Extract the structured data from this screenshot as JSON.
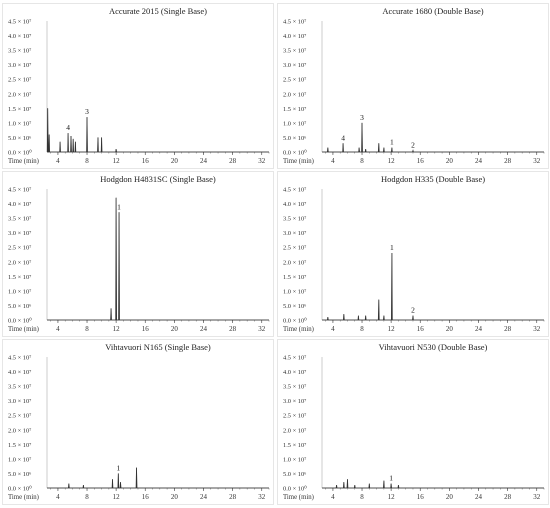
{
  "figure": {
    "y_tick_labels": [
      "4.5 × 10⁷",
      "4.0 × 10⁷",
      "3.5 × 10⁷",
      "3.0 × 10⁷",
      "2.5 × 10⁷",
      "2.0 × 10⁷",
      "1.5 × 10⁷",
      "1.0 × 10⁷",
      "5.0 × 10⁶",
      "0.0 × 10⁰"
    ],
    "x_axis_label": "Time (min)",
    "x_tick_labels": [
      "4",
      "8",
      "12",
      "16",
      "20",
      "24",
      "28",
      "32"
    ]
  },
  "chart_data": [
    {
      "type": "line",
      "title": "Accurate 2015 (Single Base)",
      "xlabel": "Time (min)",
      "xlim": [
        2.5,
        33
      ],
      "ylim": [
        0,
        45000000
      ],
      "peaks": [
        [
          2.6,
          15000000
        ],
        [
          2.8,
          6000000
        ],
        [
          4.3,
          3500000
        ],
        [
          5.4,
          6500000
        ],
        [
          5.8,
          5500000
        ],
        [
          6.1,
          4500000
        ],
        [
          6.4,
          3500000
        ],
        [
          8.0,
          12000000
        ],
        [
          9.5,
          5000000
        ],
        [
          10.0,
          5000000
        ],
        [
          12.0,
          1000000
        ]
      ],
      "annotations": [
        {
          "label": "4",
          "x": 5.4,
          "y": 6500000
        },
        {
          "label": "3",
          "x": 8.0,
          "y": 12000000
        }
      ]
    },
    {
      "type": "line",
      "title": "Accurate 1680 (Double Base)",
      "xlabel": "Time (min)",
      "xlim": [
        2.5,
        33
      ],
      "ylim": [
        0,
        45000000
      ],
      "peaks": [
        [
          3.3,
          1500000
        ],
        [
          5.4,
          3000000
        ],
        [
          7.6,
          1500000
        ],
        [
          8.0,
          10000000
        ],
        [
          8.5,
          1000000
        ],
        [
          10.3,
          3000000
        ],
        [
          11.0,
          1500000
        ],
        [
          12.1,
          1500000
        ],
        [
          15.0,
          500000
        ]
      ],
      "annotations": [
        {
          "label": "4",
          "x": 5.4,
          "y": 3000000
        },
        {
          "label": "3",
          "x": 8.0,
          "y": 10000000
        },
        {
          "label": "1",
          "x": 12.1,
          "y": 1500000
        },
        {
          "label": "2",
          "x": 15.0,
          "y": 500000
        }
      ]
    },
    {
      "type": "line",
      "title": "Hodgdon H4831SC (Single Base)",
      "xlabel": "Time (min)",
      "xlim": [
        2.5,
        33
      ],
      "ylim": [
        0,
        45000000
      ],
      "peaks": [
        [
          11.3,
          4000000
        ],
        [
          12.0,
          42000000
        ],
        [
          12.4,
          37000000
        ]
      ],
      "annotations": [
        {
          "label": "1",
          "x": 12.4,
          "y": 37000000
        }
      ]
    },
    {
      "type": "line",
      "title": "Hodgdon H335 (Double Base)",
      "xlabel": "Time (min)",
      "xlim": [
        2.5,
        33
      ],
      "ylim": [
        0,
        45000000
      ],
      "peaks": [
        [
          3.3,
          1000000
        ],
        [
          5.5,
          2000000
        ],
        [
          7.5,
          1500000
        ],
        [
          8.5,
          1500000
        ],
        [
          10.3,
          7000000
        ],
        [
          11.0,
          1500000
        ],
        [
          12.1,
          23000000
        ],
        [
          15.0,
          1500000
        ]
      ],
      "annotations": [
        {
          "label": "1",
          "x": 12.1,
          "y": 23000000
        },
        {
          "label": "2",
          "x": 15.0,
          "y": 1500000
        }
      ]
    },
    {
      "type": "line",
      "title": "Vihtavuori N165 (Single Base)",
      "xlabel": "Time (min)",
      "xlim": [
        2.5,
        33
      ],
      "ylim": [
        0,
        45000000
      ],
      "peaks": [
        [
          5.5,
          1500000
        ],
        [
          7.5,
          1000000
        ],
        [
          11.5,
          3000000
        ],
        [
          12.3,
          5000000
        ],
        [
          12.6,
          2000000
        ],
        [
          14.8,
          7000000
        ]
      ],
      "annotations": [
        {
          "label": "1",
          "x": 12.3,
          "y": 5000000
        }
      ]
    },
    {
      "type": "line",
      "title": "Vihtavuori N530 (Double Base)",
      "xlabel": "Time (min)",
      "xlim": [
        2.5,
        33
      ],
      "ylim": [
        0,
        45000000
      ],
      "peaks": [
        [
          4.5,
          1000000
        ],
        [
          5.5,
          2000000
        ],
        [
          6.0,
          3000000
        ],
        [
          7.0,
          1000000
        ],
        [
          9.0,
          1500000
        ],
        [
          11.0,
          2500000
        ],
        [
          12.0,
          1500000
        ],
        [
          13.0,
          1000000
        ]
      ],
      "annotations": [
        {
          "label": "1",
          "x": 12.0,
          "y": 1500000
        }
      ]
    }
  ]
}
